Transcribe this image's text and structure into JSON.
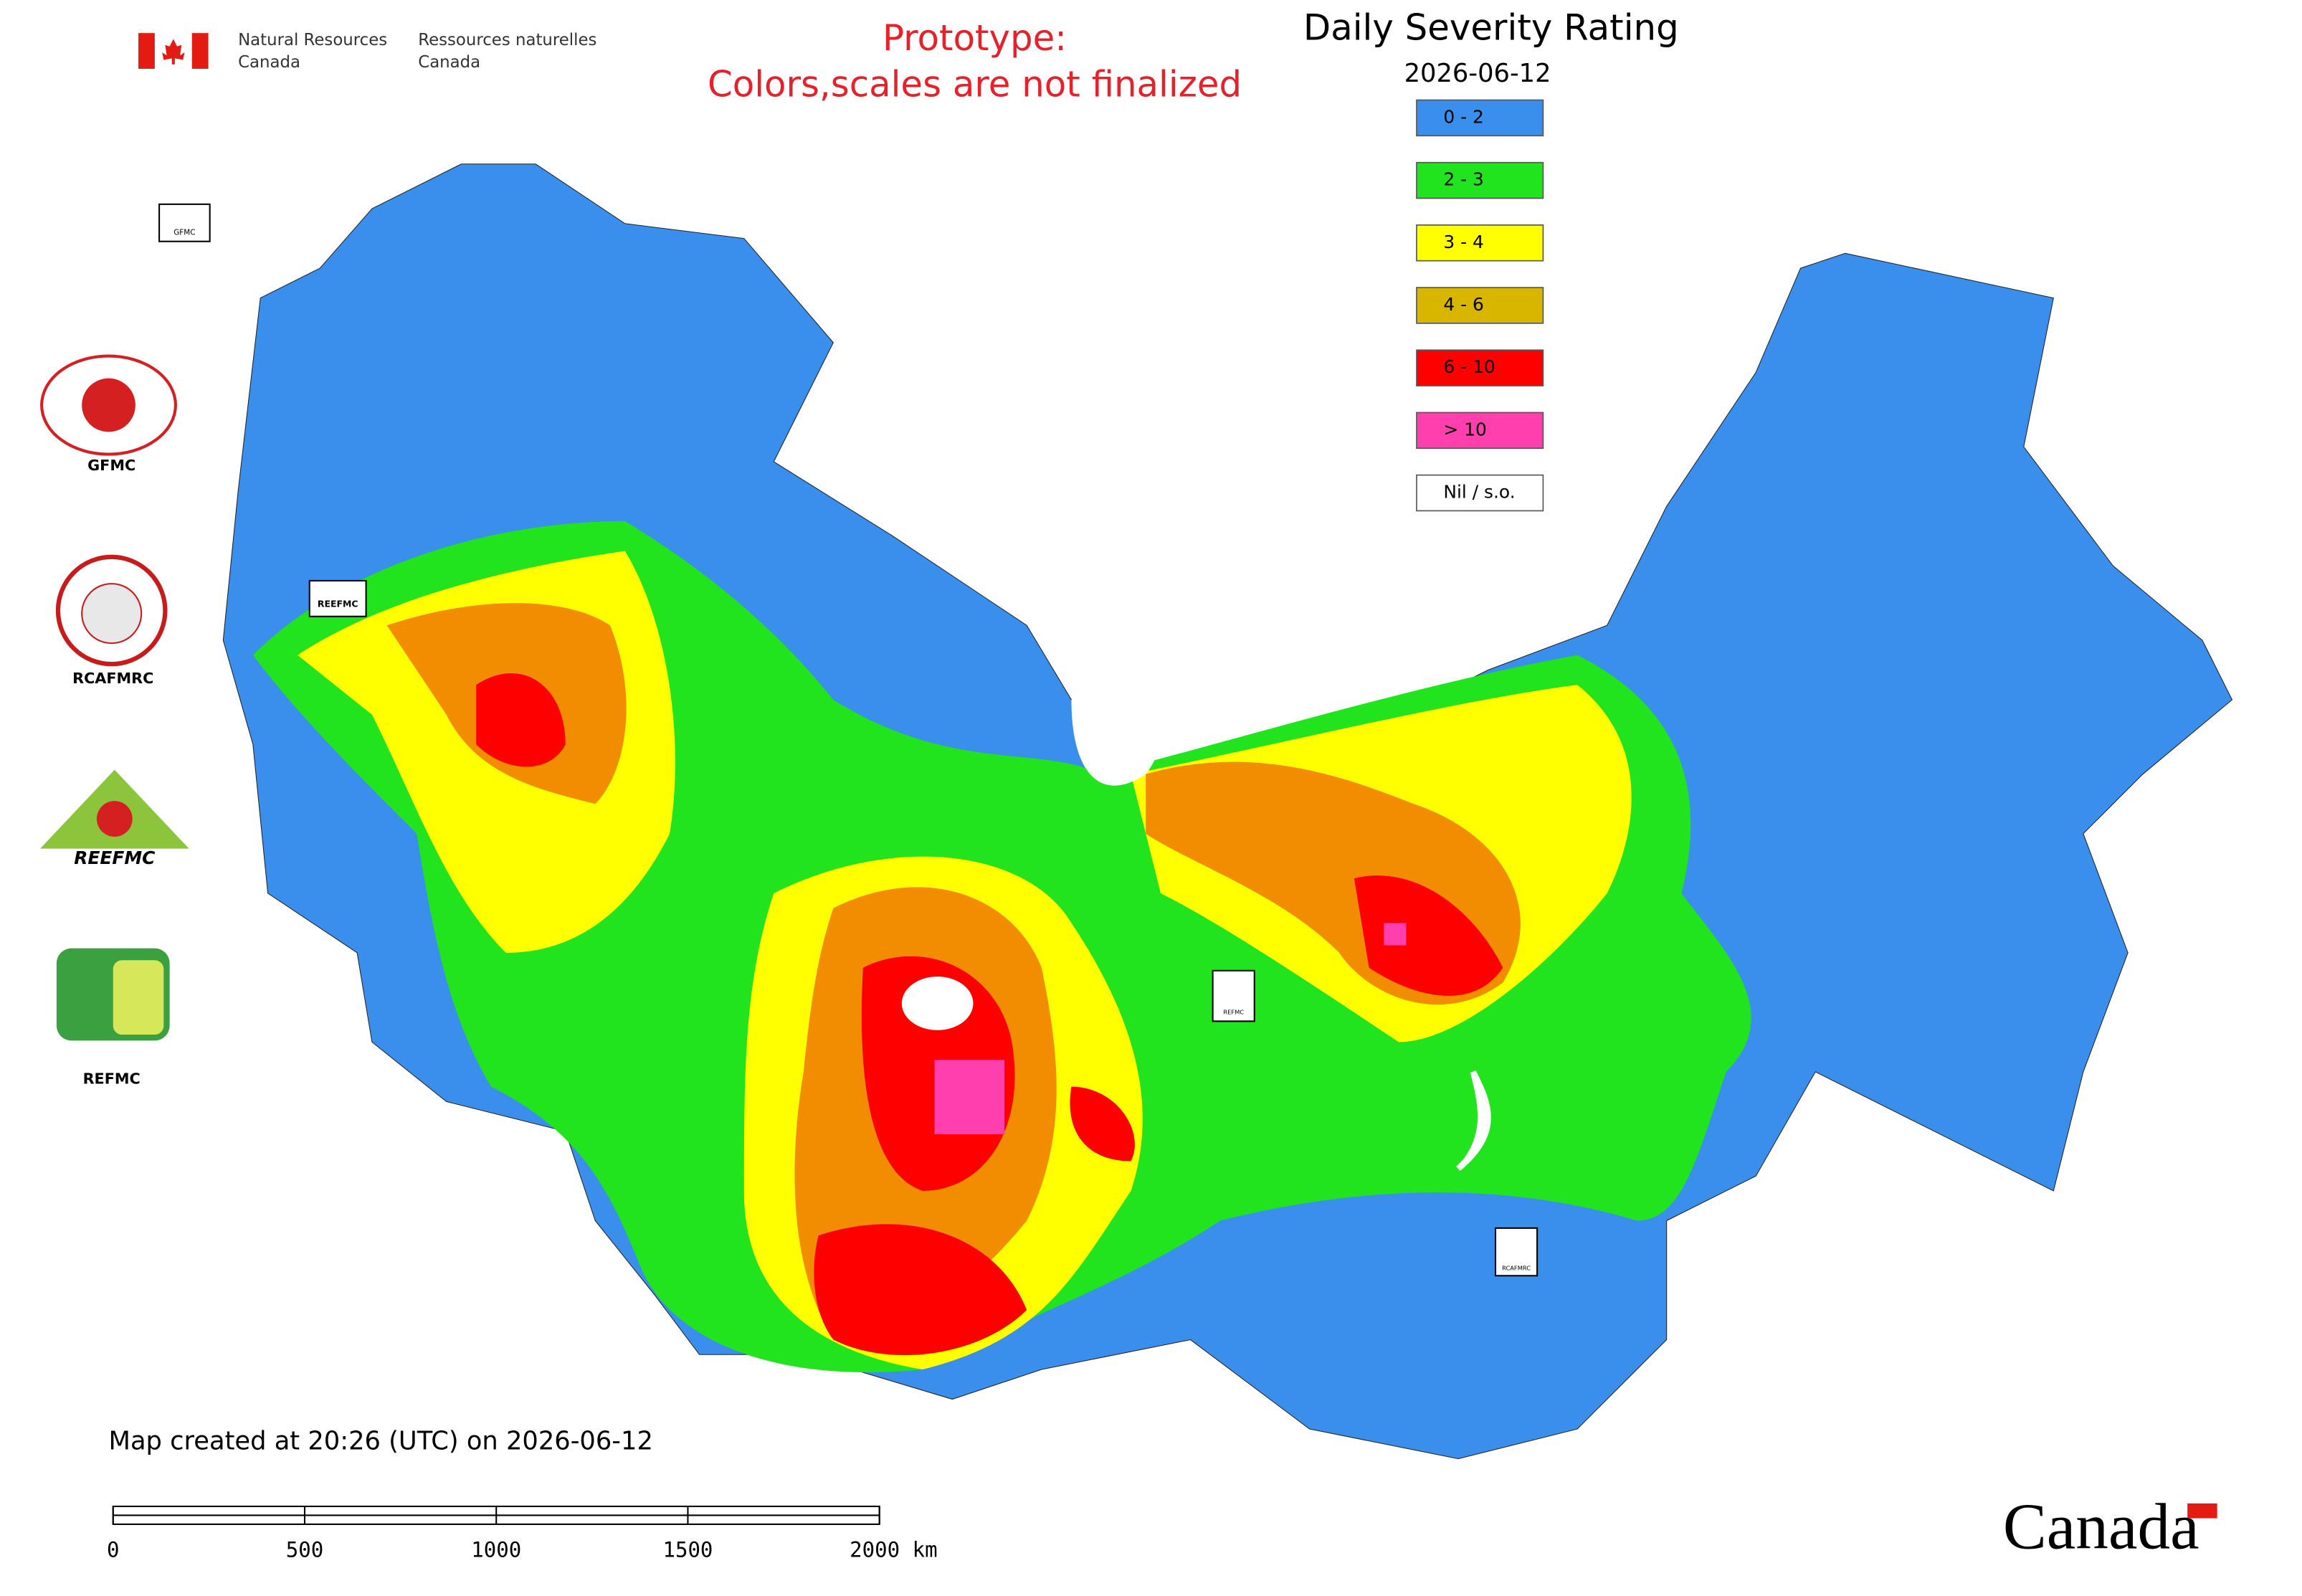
{
  "header": {
    "department_en": [
      "Natural Resources",
      "Canada"
    ],
    "department_fr": [
      "Ressources naturelles",
      "Canada"
    ],
    "notice": [
      "Prototype:",
      "Colors,scales are not finalized"
    ],
    "title": "Daily Severity Rating",
    "date": "2026-06-12"
  },
  "legend": [
    {
      "label": "0 - 2",
      "color": "#3a8eec"
    },
    {
      "label": "2 - 3",
      "color": "#22e41e"
    },
    {
      "label": "3 - 4",
      "color": "#ffff00"
    },
    {
      "label": "4 - 6",
      "color": "#d8b600"
    },
    {
      "label": "6 - 10",
      "color": "#ff0000"
    },
    {
      "label": "> 10",
      "color": "#ff3fae"
    },
    {
      "label": "Nil / s.o.",
      "color": "#ffffff"
    }
  ],
  "logos": [
    {
      "label": "GFMC"
    },
    {
      "label": "RCAFMRC"
    },
    {
      "label": "REEFMC"
    },
    {
      "label": "REFMC"
    }
  ],
  "map_markers": [
    {
      "label": "GFMC"
    },
    {
      "label": "REEFMC"
    },
    {
      "label": "REFMC"
    },
    {
      "label": "RCAFMRC"
    }
  ],
  "footer": {
    "created": "Map created at 20:26 (UTC) on 2026-06-12",
    "scale_labels": [
      "0",
      "500",
      "1000",
      "1500",
      "2000 km"
    ],
    "wordmark": "Canada"
  }
}
